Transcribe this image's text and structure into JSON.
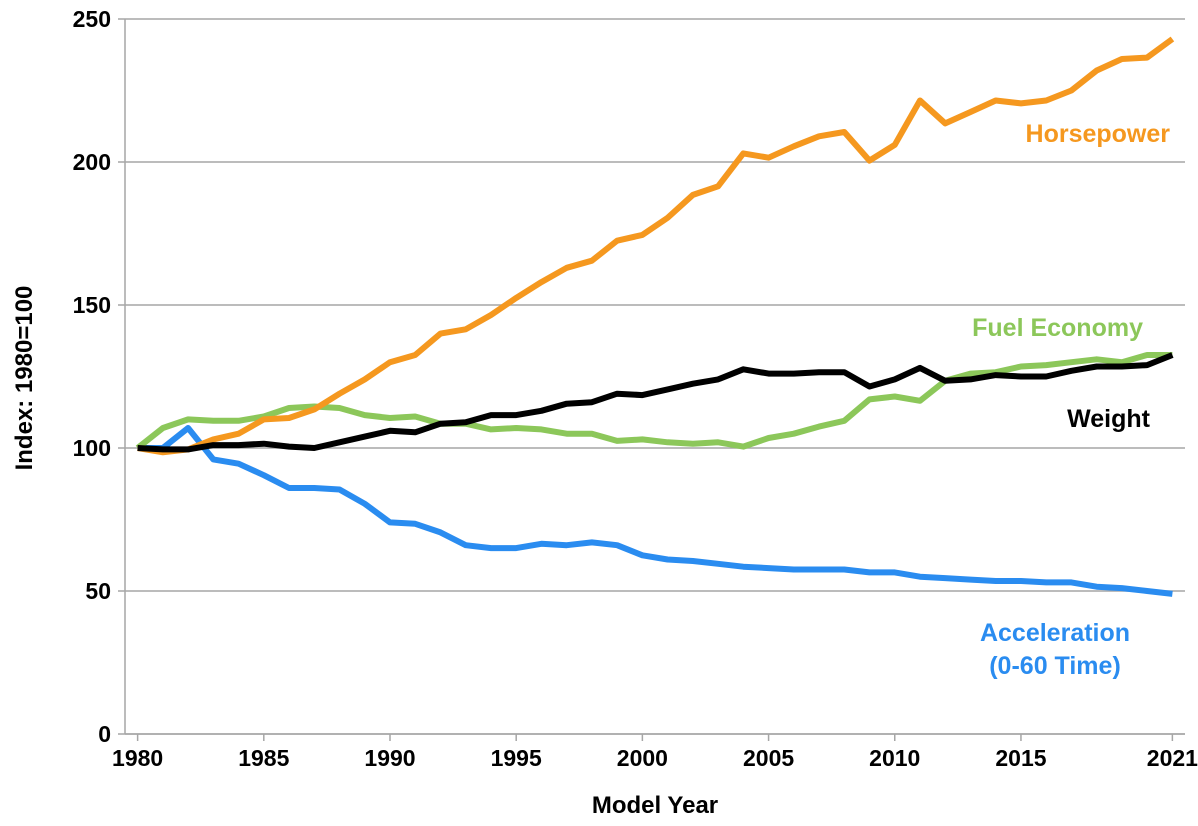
{
  "chart_data": {
    "type": "line",
    "xlabel": "Model Year",
    "ylabel": "Index: 1980=100",
    "x": [
      1980,
      1981,
      1982,
      1983,
      1984,
      1985,
      1986,
      1987,
      1988,
      1989,
      1990,
      1991,
      1992,
      1993,
      1994,
      1995,
      1996,
      1997,
      1998,
      1999,
      2000,
      2001,
      2002,
      2003,
      2004,
      2005,
      2006,
      2007,
      2008,
      2009,
      2010,
      2011,
      2012,
      2013,
      2014,
      2015,
      2016,
      2017,
      2018,
      2019,
      2020,
      2021
    ],
    "series": [
      {
        "name": "Horsepower",
        "color": "#f5981f",
        "values": [
          100,
          98.5,
          99.5,
          103,
          105,
          110,
          110.5,
          113.5,
          119,
          124,
          130,
          132.5,
          140,
          141.5,
          146.5,
          152.5,
          158,
          163,
          165.5,
          172.5,
          174.5,
          180.5,
          188.5,
          191.5,
          203,
          201.5,
          205.5,
          209,
          210.5,
          200.5,
          206,
          221.5,
          213.5,
          217.5,
          221.5,
          220.5,
          221.5,
          225,
          232,
          236,
          236.5,
          243
        ]
      },
      {
        "name": "Fuel Economy",
        "color": "#8cc75a",
        "values": [
          100,
          107,
          110,
          109.5,
          109.5,
          111,
          114,
          114.5,
          114,
          111.5,
          110.5,
          111,
          108.5,
          108.5,
          106.5,
          107,
          106.5,
          105,
          105,
          102.5,
          103,
          102,
          101.5,
          102,
          100.5,
          103.5,
          105,
          107.5,
          109.5,
          117,
          118,
          116.5,
          123.5,
          126,
          126.5,
          128.5,
          129,
          130,
          131,
          130,
          132.5,
          132.5
        ]
      },
      {
        "name": "Weight",
        "color": "#000000",
        "values": [
          100,
          99.5,
          99.5,
          101,
          101,
          101.5,
          100.5,
          100,
          102,
          104,
          106,
          105.5,
          108.5,
          109,
          111.5,
          111.5,
          113,
          115.5,
          116,
          119,
          118.5,
          120.5,
          122.5,
          124,
          127.5,
          126,
          126,
          126.5,
          126.5,
          121.5,
          124,
          128,
          123.5,
          124,
          125.5,
          125,
          125,
          127,
          128.5,
          128.5,
          129,
          132.5
        ]
      },
      {
        "name": "Acceleration\n(0-60 Time)",
        "color": "#2a8cf0",
        "values": [
          100,
          100,
          107,
          96,
          94.5,
          90.5,
          86,
          86,
          85.5,
          80.5,
          74,
          73.5,
          70.5,
          66,
          65,
          65,
          66.5,
          66,
          67,
          66,
          62.5,
          61,
          60.5,
          59.5,
          58.5,
          58,
          57.5,
          57.5,
          57.5,
          56.5,
          56.5,
          55,
          54.5,
          54,
          53.5,
          53.5,
          53,
          53,
          51.5,
          51,
          50,
          49
        ]
      }
    ],
    "xlim": [
      1979.5,
      2021.5
    ],
    "ylim": [
      0,
      250
    ],
    "xticks": [
      1980,
      1985,
      1990,
      1995,
      2000,
      2005,
      2010,
      2015,
      2021
    ],
    "yticks": [
      0,
      50,
      100,
      150,
      200,
      250
    ],
    "grid": true
  }
}
